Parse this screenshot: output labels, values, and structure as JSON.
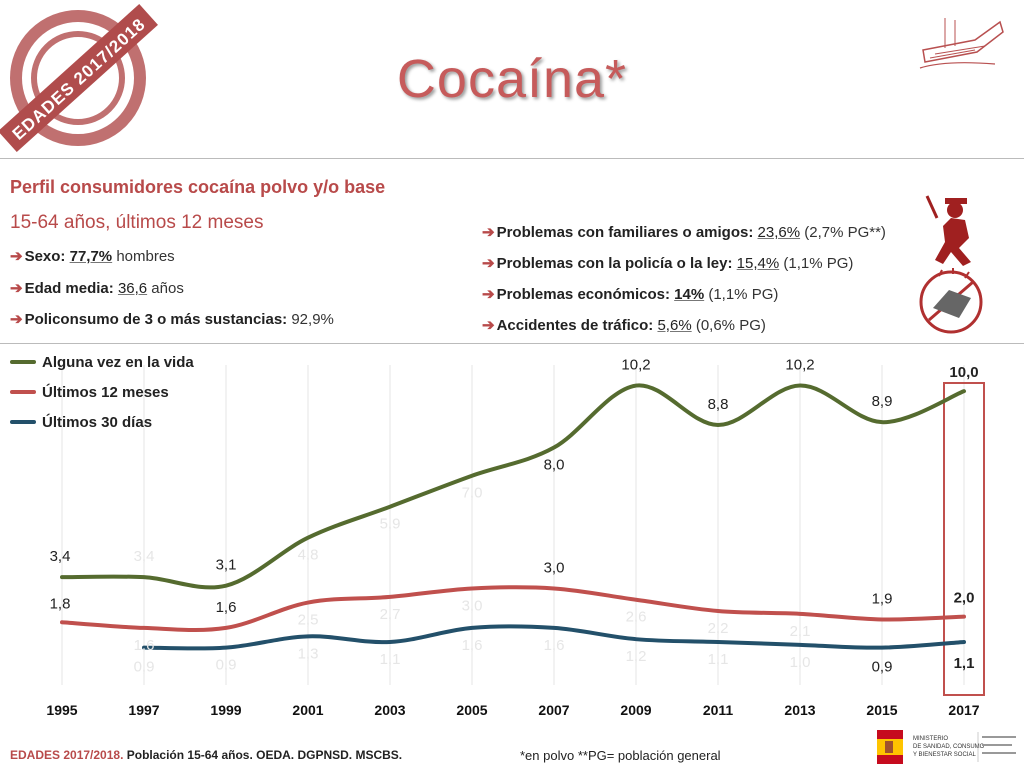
{
  "stamp_text": "EDADES 2017/2018",
  "title": "Cocaína*",
  "profile": {
    "title": "Perfil consumidores cocaína polvo y/o base",
    "subtitle": "15-64 años, últimos 12 meses",
    "left": [
      {
        "label": "Sexo:",
        "value": "77,7%",
        "suffix": " hombres"
      },
      {
        "label": "Edad media:",
        "value": "36,6",
        "suffix": " años"
      },
      {
        "label": "Policonsumo de 3 o más sustancias:",
        "value": "",
        "suffix": " 92,9%"
      }
    ],
    "right": [
      {
        "label": "Problemas con familiares o amigos:",
        "value": "23,6%",
        "suffix": " (2,7% PG**)"
      },
      {
        "label": "Problemas con la policía o la ley:",
        "value": "15,4%",
        "suffix": " (1,1% PG)"
      },
      {
        "label": "Problemas económicos:",
        "value": "14%",
        "suffix": " (1,1% PG)"
      },
      {
        "label": "Accidentes de tráfico:",
        "value": "5,6%",
        "suffix": " (0,6% PG)"
      }
    ]
  },
  "chart_data": {
    "type": "line",
    "x": [
      "1995",
      "1997",
      "1999",
      "2001",
      "2003",
      "2005",
      "2007",
      "2009",
      "2011",
      "2013",
      "2015",
      "2017"
    ],
    "ylim": [
      0,
      11
    ],
    "series": [
      {
        "name": "Alguna vez en la vida",
        "color": "#556b2f",
        "values": [
          3.4,
          3.4,
          3.1,
          4.8,
          5.9,
          7.0,
          8.0,
          10.2,
          8.8,
          10.2,
          8.9,
          10.0
        ],
        "labels": [
          "3,4",
          "3,4",
          "3,1",
          "4,8",
          "5,9",
          "7,0",
          "8,0",
          "10,2",
          "8,8",
          "10,2",
          "8,9",
          "10,0"
        ]
      },
      {
        "name": "Últimos 12 meses",
        "color": "#c0504d",
        "values": [
          1.8,
          1.6,
          1.6,
          2.5,
          2.7,
          3.0,
          3.0,
          2.6,
          2.2,
          2.1,
          1.9,
          2.0
        ],
        "labels": [
          "1,8",
          "1,6",
          "1,6",
          "2,5",
          "2,7",
          "3,0",
          "3,0",
          "2,6",
          "2,2",
          "2,1",
          "1,9",
          "2,0"
        ]
      },
      {
        "name": "Últimos 30 días",
        "color": "#23506a",
        "values": [
          null,
          0.9,
          0.9,
          1.3,
          1.1,
          1.6,
          1.6,
          1.2,
          1.1,
          1.0,
          0.9,
          1.1
        ],
        "labels": [
          "",
          "0,9",
          "0,9",
          "1,3",
          "1,1",
          "1,6",
          "1,6",
          "1,2",
          "1,1",
          "1,0",
          "0,9",
          "1,1"
        ]
      }
    ]
  },
  "footer": {
    "highlight": "EDADES 2017/2018.",
    "text": " Población 15-64 años. OEDA. DGPNSD. MSCBS."
  },
  "note": "*en polvo **PG= población general",
  "logo": {
    "line1": "MINISTERIO",
    "line2": "DE SANIDAD, CONSUMO",
    "line3": "Y BIENESTAR SOCIAL"
  },
  "colors": {
    "accent": "#b84a4a",
    "highlight_box": "#c0504d"
  }
}
